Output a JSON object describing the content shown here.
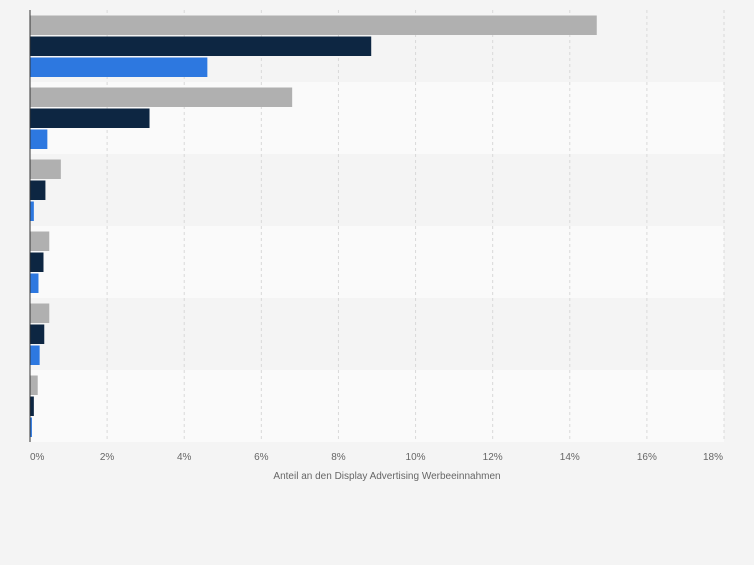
{
  "chart_data": {
    "type": "bar",
    "orientation": "horizontal",
    "title": "",
    "xlabel": "Anteil an den Display Advertising Werbeeinnahmen",
    "ylabel": "",
    "xlim": [
      0,
      18
    ],
    "xticks": [
      0,
      2,
      4,
      6,
      8,
      10,
      12,
      14,
      16,
      18
    ],
    "tick_suffix": "%",
    "grid": true,
    "legend": "none",
    "categories": [
      "",
      "",
      "",
      "",
      "",
      ""
    ],
    "series": [
      {
        "color": "#b0b0b0",
        "values": [
          14.7,
          6.8,
          0.8,
          0.5,
          0.5,
          0.2
        ]
      },
      {
        "color": "#0d2642",
        "values": [
          8.85,
          3.1,
          0.4,
          0.35,
          0.37,
          0.1
        ]
      },
      {
        "color": "#2d78e0",
        "values": [
          4.6,
          0.45,
          0.1,
          0.22,
          0.25,
          0.05
        ]
      }
    ]
  }
}
